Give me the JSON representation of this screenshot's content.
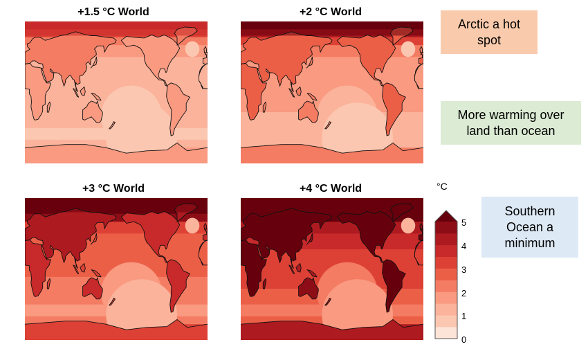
{
  "panels": [
    {
      "title": "+1.5 °C World",
      "warming_level": 1.5
    },
    {
      "title": "+2 °C World",
      "warming_level": 2
    },
    {
      "title": "+3 °C World",
      "warming_level": 3
    },
    {
      "title": "+4 °C World",
      "warming_level": 4
    }
  ],
  "callouts": [
    {
      "text": "Arctic a hot spot",
      "color": "#f9cbac"
    },
    {
      "text": "More warming over land than ocean",
      "color": "#dcebd4"
    },
    {
      "text": "Southern Ocean a minimum",
      "color": "#dde9f5"
    }
  ],
  "colorbar": {
    "unit": "°C",
    "ticks": [
      "0",
      "1",
      "2",
      "3",
      "4",
      "5"
    ],
    "levels": [
      0,
      0.5,
      1,
      1.5,
      2,
      2.5,
      3,
      3.5,
      4,
      4.5,
      5
    ],
    "colors": [
      "#fde4d8",
      "#fcc7b1",
      "#fbb39b",
      "#f99a81",
      "#f47c63",
      "#ec5f47",
      "#dd4135",
      "#c8292a",
      "#ad1a20",
      "#8d0d17"
    ],
    "extend": "max"
  }
}
